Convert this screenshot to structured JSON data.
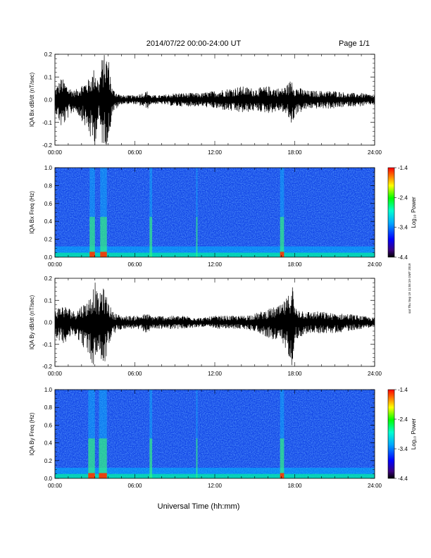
{
  "header": {
    "title": "2014/07/22  00:00-24:00 UT",
    "page": "Page 1/1"
  },
  "side_note": "sat Thu Sep 19 11:55:19 GMT 2019",
  "xlabel": "Universal Time (hh:mm)",
  "x_ticks": [
    "00:00",
    "06:00",
    "12:00",
    "18:00",
    "24:00"
  ],
  "colorbar": {
    "label": "Log₁₀ Power",
    "ticks": [
      "-1.4",
      "-2.4",
      "-3.4",
      "-4.4"
    ],
    "range": [
      -4.4,
      -1.4
    ]
  },
  "chart_data": [
    {
      "type": "line",
      "ylabel": "IQA Bx dB/dt (nT/sec)",
      "xlim_hours": [
        0,
        24
      ],
      "ylim": [
        -0.2,
        0.2
      ],
      "y_ticks": [
        "0.2",
        "0.1",
        "0.0",
        "-0.1",
        "-0.2"
      ],
      "y_tick_values": [
        0.2,
        0.1,
        0.0,
        -0.1,
        -0.2
      ],
      "envelope": {
        "x_hours": [
          0,
          0.5,
          1,
          1.5,
          2,
          2.5,
          2.8,
          3,
          3.3,
          3.5,
          3.7,
          4,
          4.3,
          5,
          6,
          7,
          7.2,
          8,
          9,
          10,
          11,
          12,
          13,
          14,
          15,
          16,
          17,
          17.5,
          17.8,
          18,
          19,
          20,
          21,
          22,
          23,
          24
        ],
        "max": [
          0.05,
          0.1,
          0.06,
          0.04,
          0.07,
          0.09,
          0.12,
          0.15,
          0.08,
          0.18,
          0.2,
          0.2,
          0.05,
          0.02,
          0.02,
          0.04,
          0.02,
          0.02,
          0.03,
          0.03,
          0.03,
          0.04,
          0.05,
          0.06,
          0.05,
          0.06,
          0.05,
          0.07,
          0.1,
          0.06,
          0.04,
          0.04,
          0.04,
          0.03,
          0.03,
          0.02
        ],
        "min": [
          -0.05,
          -0.13,
          -0.08,
          -0.05,
          -0.09,
          -0.15,
          -0.2,
          -0.2,
          -0.09,
          -0.2,
          -0.2,
          -0.2,
          -0.06,
          -0.02,
          -0.02,
          -0.04,
          -0.02,
          -0.02,
          -0.03,
          -0.03,
          -0.03,
          -0.04,
          -0.05,
          -0.06,
          -0.05,
          -0.06,
          -0.05,
          -0.08,
          -0.12,
          -0.07,
          -0.04,
          -0.04,
          -0.04,
          -0.03,
          -0.03,
          -0.02
        ]
      }
    },
    {
      "type": "heatmap",
      "ylabel": "IQA Bx Freq (Hz)",
      "xlim_hours": [
        0,
        24
      ],
      "ylim": [
        0.0,
        1.0
      ],
      "y_ticks": [
        "1.0",
        "0.8",
        "0.6",
        "0.4",
        "0.2",
        "0.0"
      ],
      "y_tick_values": [
        1.0,
        0.8,
        0.6,
        0.4,
        0.2,
        0.0
      ],
      "zlim": [
        -4.4,
        -1.4
      ],
      "enhanced_intervals_hours": [
        [
          2.6,
          3.0
        ],
        [
          3.4,
          3.9
        ],
        [
          7.1,
          7.3
        ],
        [
          10.6,
          10.7
        ],
        [
          16.9,
          17.2
        ]
      ]
    },
    {
      "type": "line",
      "ylabel": "IQA By dB/dt (nT/sec)",
      "xlim_hours": [
        0,
        24
      ],
      "ylim": [
        -0.2,
        0.2
      ],
      "y_ticks": [
        "0.2",
        "0.1",
        "0.0",
        "-0.1",
        "-0.2"
      ],
      "y_tick_values": [
        0.2,
        0.1,
        0.0,
        -0.1,
        -0.2
      ],
      "envelope": {
        "x_hours": [
          0,
          0.5,
          1,
          1.5,
          2,
          2.5,
          2.8,
          3,
          3.3,
          3.5,
          3.7,
          4,
          4.3,
          5,
          6,
          7,
          7.2,
          8,
          9,
          10,
          11,
          12,
          13,
          14,
          15,
          16,
          17,
          17.5,
          17.8,
          18,
          19,
          20,
          21,
          22,
          23,
          24
        ],
        "max": [
          0.06,
          0.08,
          0.07,
          0.05,
          0.08,
          0.1,
          0.15,
          0.19,
          0.1,
          0.17,
          0.15,
          0.1,
          0.05,
          0.03,
          0.03,
          0.04,
          0.03,
          0.03,
          0.03,
          0.03,
          0.02,
          0.03,
          0.03,
          0.03,
          0.04,
          0.06,
          0.08,
          0.12,
          0.2,
          0.07,
          0.05,
          0.05,
          0.04,
          0.04,
          0.03,
          0.02
        ],
        "min": [
          -0.06,
          -0.1,
          -0.08,
          -0.06,
          -0.1,
          -0.15,
          -0.2,
          -0.2,
          -0.12,
          -0.2,
          -0.2,
          -0.12,
          -0.06,
          -0.03,
          -0.03,
          -0.05,
          -0.03,
          -0.03,
          -0.03,
          -0.03,
          -0.02,
          -0.03,
          -0.03,
          -0.03,
          -0.04,
          -0.07,
          -0.1,
          -0.14,
          -0.2,
          -0.08,
          -0.05,
          -0.05,
          -0.05,
          -0.04,
          -0.03,
          -0.02
        ]
      }
    },
    {
      "type": "heatmap",
      "ylabel": "IQA By Freq (Hz)",
      "xlim_hours": [
        0,
        24
      ],
      "ylim": [
        0.0,
        1.0
      ],
      "y_ticks": [
        "1.0",
        "0.8",
        "0.6",
        "0.4",
        "0.2",
        "0.0"
      ],
      "y_tick_values": [
        1.0,
        0.8,
        0.6,
        0.4,
        0.2,
        0.0
      ],
      "zlim": [
        -4.4,
        -1.4
      ],
      "enhanced_intervals_hours": [
        [
          2.5,
          3.0
        ],
        [
          3.3,
          3.9
        ],
        [
          7.1,
          7.3
        ],
        [
          10.6,
          10.7
        ],
        [
          16.9,
          17.2
        ]
      ]
    }
  ]
}
